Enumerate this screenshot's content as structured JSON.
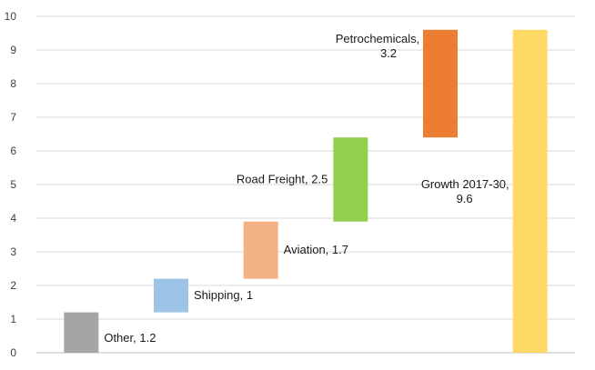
{
  "chart_data": {
    "type": "bar",
    "subtype": "waterfall",
    "title": "",
    "xlabel": "",
    "ylabel": "",
    "ylim": [
      0,
      10
    ],
    "yticks": [
      0,
      1,
      2,
      3,
      4,
      5,
      6,
      7,
      8,
      9,
      10
    ],
    "grid": true,
    "legend": "none",
    "bars": [
      {
        "category": "Other",
        "value": 1.2,
        "start": 0,
        "end": 1.2,
        "label_lines": [
          "Other, 1.2"
        ],
        "color": "#a5a5a5",
        "label_side": "right"
      },
      {
        "category": "Shipping",
        "value": 1,
        "start": 1.2,
        "end": 2.2,
        "label_lines": [
          "Shipping, 1"
        ],
        "color": "#9dc3e6",
        "label_side": "right"
      },
      {
        "category": "Aviation",
        "value": 1.7,
        "start": 2.2,
        "end": 3.9,
        "label_lines": [
          "Aviation, 1.7"
        ],
        "color": "#f4b183",
        "label_side": "right"
      },
      {
        "category": "Road Freight",
        "value": 2.5,
        "start": 3.9,
        "end": 6.4,
        "label_lines": [
          "Road Freight, 2.5"
        ],
        "color": "#92d050",
        "label_side": "left"
      },
      {
        "category": "Petrochemicals",
        "value": 3.2,
        "start": 6.4,
        "end": 9.6,
        "label_lines": [
          "Petrochemicals,",
          "3.2"
        ],
        "color": "#ed7d31",
        "label_side": "left-top"
      },
      {
        "category": "Growth 2017-30",
        "value": 9.6,
        "start": 0,
        "end": 9.6,
        "label_lines": [
          "Growth 2017-30,",
          "9.6"
        ],
        "color": "#ffd966",
        "label_side": "left"
      }
    ]
  }
}
